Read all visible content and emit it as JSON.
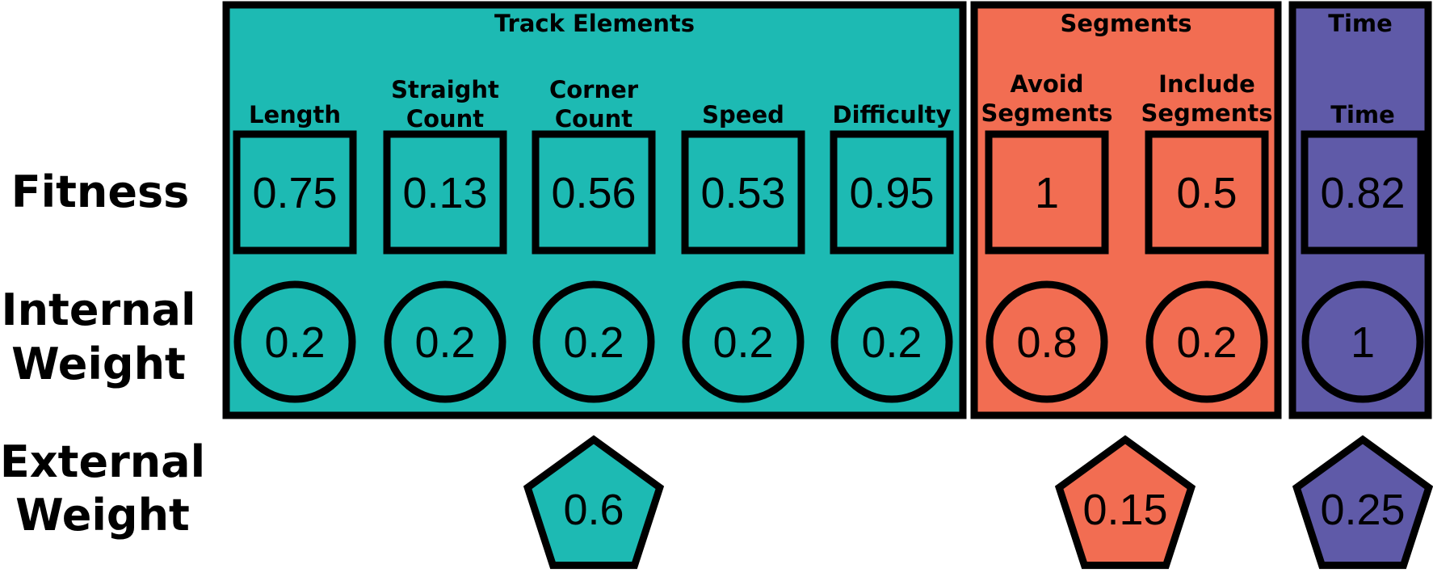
{
  "row_labels": {
    "fitness": "Fitness",
    "internal_weight": [
      "Internal",
      "Weight"
    ],
    "external_weight": [
      "External",
      "Weight"
    ]
  },
  "groups": [
    {
      "id": "track-elements",
      "title": "Track Elements",
      "color": "#1dbab3",
      "external_weight": "0.6",
      "items": [
        {
          "label": [
            "Length"
          ],
          "fitness": "0.75",
          "internal_weight": "0.2"
        },
        {
          "label": [
            "Straight",
            "Count"
          ],
          "fitness": "0.13",
          "internal_weight": "0.2"
        },
        {
          "label": [
            "Corner",
            "Count"
          ],
          "fitness": "0.56",
          "internal_weight": "0.2"
        },
        {
          "label": [
            "Speed"
          ],
          "fitness": "0.53",
          "internal_weight": "0.2"
        },
        {
          "label": [
            "Difficulty"
          ],
          "fitness": "0.95",
          "internal_weight": "0.2"
        }
      ]
    },
    {
      "id": "segments",
      "title": "Segments",
      "color": "#f26d52",
      "external_weight": "0.15",
      "items": [
        {
          "label": [
            "Avoid",
            "Segments"
          ],
          "fitness": "1",
          "internal_weight": "0.8"
        },
        {
          "label": [
            "Include",
            "Segments"
          ],
          "fitness": "0.5",
          "internal_weight": "0.2"
        }
      ]
    },
    {
      "id": "time",
      "title": "Time",
      "color": "#5f5aa8",
      "external_weight": "0.25",
      "items": [
        {
          "label": [
            "Time"
          ],
          "fitness": "0.82",
          "internal_weight": "1"
        }
      ]
    }
  ]
}
